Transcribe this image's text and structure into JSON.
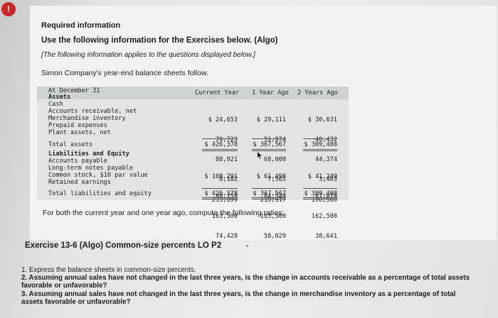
{
  "alert_badge": "!",
  "required_title": "Required information",
  "instruction": "Use the following information for the Exercises below. (Algo)",
  "note": "[The following information applies to the questions displayed below.]",
  "intro": "Simon Company's year-end balance sheets follow.",
  "balance_sheet": {
    "header_label": "At December 31",
    "columns": [
      "Current Year",
      "1 Year Ago",
      "2 Years Ago"
    ],
    "labels": {
      "assets": "Assets",
      "cash": "Cash",
      "ar": "Accounts receivable, net",
      "inventory": "Merchandise inventory",
      "prepaid": "Prepaid expenses",
      "plant": "Plant assets, net",
      "total_assets": "Total assets",
      "liab_equity": "Liabilities and Equity",
      "ap": "Accounts payable",
      "notes": "Long-term notes payable",
      "common": "Common stock, $10 par value",
      "retained": "Retained earnings",
      "total_le": "Total liabilities and equity"
    },
    "assets": {
      "current": [
        "$ 24,653",
        "70,723",
        "88,921",
        "8,182",
        "233,899"
      ],
      "one_year": [
        "$ 29,111",
        "51,974",
        "68,000",
        "7,565",
        "210,917"
      ],
      "two_years": [
        "$ 30,631",
        "40,432",
        "44,374",
        "3,403",
        "190,560"
      ]
    },
    "total_assets": {
      "current": "$ 426,378",
      "one_year": "$ 367,567",
      "two_years": "$ 309,400"
    },
    "liabilities": {
      "current": [
        "$ 108,291",
        "80,159",
        "163,500",
        "74,428"
      ],
      "one_year": [
        "$ 61,498",
        "84,540",
        "163,500",
        "58,029"
      ],
      "two_years": [
        "$ 41,249",
        "67,010",
        "162,500",
        "38,641"
      ]
    },
    "total_le": {
      "current": "$ 426,378",
      "one_year": "$ 367,567",
      "two_years": "$ 309,400"
    }
  },
  "ratios_text": "For both the current year and one year ago, compute the following ratios:",
  "exercise_title": "Exercise 13-6 (Algo) Common-size percents LO P2",
  "questions": {
    "q1": "1. Express the balance sheets in common-size percents.",
    "q2_bold": "2. Assuming annual sales have not changed in the last three years, is the change in accounts receivable as a percentage of total assets favorable or unfavorable?",
    "q3_bold": "3. Assuming annual sales have not changed in the last three years, is the change in merchandise inventory as a percentage of total assets favorable or unfavorable?"
  }
}
